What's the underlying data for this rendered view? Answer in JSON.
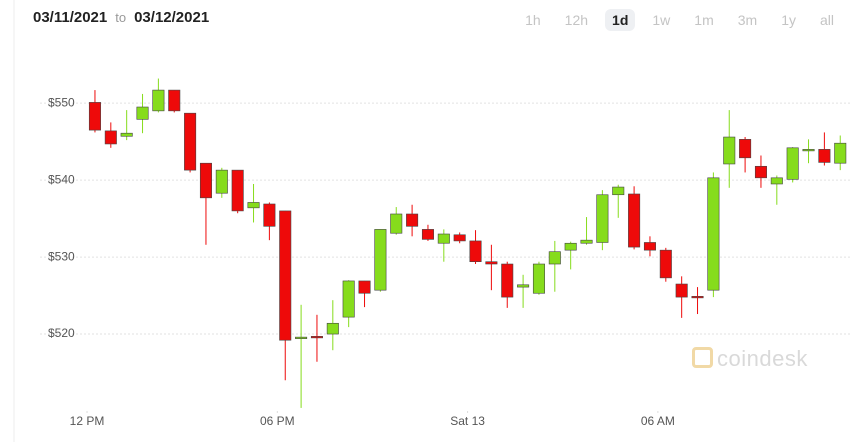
{
  "header": {
    "start_date": "03/11/2021",
    "separator": "to",
    "end_date": "03/12/2021"
  },
  "range_buttons": [
    "1h",
    "12h",
    "1d",
    "1w",
    "1m",
    "3m",
    "1y",
    "all"
  ],
  "selected_range": "1d",
  "watermark": "coindesk",
  "chart_data": {
    "type": "candlestick",
    "up_color": "#86dc1c",
    "down_color": "#ee0a0a",
    "grid": true,
    "xlim": [
      -0.6,
      23.9
    ],
    "xticks": [
      {
        "value": 0,
        "label": "12 PM"
      },
      {
        "value": 6,
        "label": "06 PM"
      },
      {
        "value": 12,
        "label": "Sat 13"
      },
      {
        "value": 18,
        "label": "06 AM"
      }
    ],
    "ylim": [
      510,
      556
    ],
    "yticks": [
      {
        "value": 520,
        "label": "$520"
      },
      {
        "value": 530,
        "label": "$530"
      },
      {
        "value": 540,
        "label": "$540"
      },
      {
        "value": 550,
        "label": "$550"
      }
    ],
    "x": [
      0.25,
      0.75,
      1.25,
      1.75,
      2.25,
      2.75,
      3.25,
      3.75,
      4.25,
      4.75,
      5.25,
      5.75,
      6.25,
      6.75,
      7.25,
      7.75,
      8.25,
      8.75,
      9.25,
      9.75,
      10.25,
      10.75,
      11.25,
      11.75,
      12.25,
      12.75,
      13.25,
      13.75,
      14.25,
      14.75,
      15.25,
      15.75,
      16.25,
      16.75,
      17.25,
      17.75,
      18.25,
      18.75,
      19.25,
      19.75,
      20.25,
      20.75,
      21.25,
      21.75,
      22.25,
      22.75,
      23.25,
      23.75
    ],
    "open": [
      550.1,
      546.4,
      545.7,
      547.9,
      549.0,
      551.7,
      548.7,
      542.2,
      538.3,
      541.3,
      536.4,
      536.9,
      536.0,
      519.4,
      519.7,
      520.0,
      522.2,
      526.9,
      525.7,
      533.1,
      535.6,
      533.6,
      531.8,
      532.9,
      532.1,
      529.4,
      529.1,
      526.1,
      525.3,
      529.1,
      530.9,
      531.8,
      531.9,
      538.1,
      538.2,
      531.9,
      530.9,
      526.5,
      524.9,
      525.7,
      542.1,
      545.3,
      541.8,
      539.5,
      540.1,
      543.8,
      544.0,
      542.2
    ],
    "high": [
      551.7,
      547.5,
      549.1,
      551.2,
      553.2,
      551.7,
      548.7,
      542.2,
      541.6,
      541.3,
      539.5,
      537.1,
      536.0,
      523.8,
      522.5,
      524.4,
      527.0,
      526.9,
      533.6,
      536.5,
      536.8,
      534.2,
      533.6,
      533.2,
      533.5,
      531.6,
      529.4,
      527.7,
      529.4,
      532.1,
      532.0,
      535.2,
      538.7,
      539.4,
      539.2,
      532.7,
      531.2,
      527.5,
      526.1,
      541.0,
      549.1,
      545.6,
      543.2,
      540.6,
      544.3,
      545.3,
      546.2,
      545.8
    ],
    "low": [
      546.2,
      544.2,
      545.2,
      546.1,
      548.8,
      548.8,
      541.0,
      531.6,
      537.7,
      535.7,
      534.5,
      532.2,
      514.0,
      510.4,
      516.4,
      517.9,
      520.9,
      523.5,
      525.5,
      532.9,
      532.7,
      532.1,
      529.4,
      531.8,
      529.1,
      525.7,
      523.4,
      523.4,
      525.1,
      525.5,
      528.4,
      531.6,
      530.9,
      535.1,
      531.0,
      530.1,
      526.8,
      522.1,
      522.6,
      524.8,
      539.0,
      541.0,
      539.0,
      536.8,
      539.7,
      542.2,
      541.9,
      541.3
    ],
    "close": [
      546.5,
      544.7,
      546.1,
      549.5,
      551.7,
      549.0,
      541.3,
      537.7,
      541.3,
      536.0,
      537.1,
      534.0,
      519.2,
      519.6,
      519.5,
      521.4,
      526.9,
      525.3,
      533.6,
      535.6,
      534.0,
      532.3,
      533.0,
      532.1,
      529.4,
      529.1,
      524.8,
      526.4,
      529.1,
      530.7,
      531.8,
      532.2,
      538.1,
      539.1,
      531.3,
      530.9,
      527.3,
      524.8,
      524.7,
      540.3,
      545.6,
      542.9,
      540.3,
      540.3,
      544.2,
      544.0,
      542.3,
      544.8
    ]
  }
}
